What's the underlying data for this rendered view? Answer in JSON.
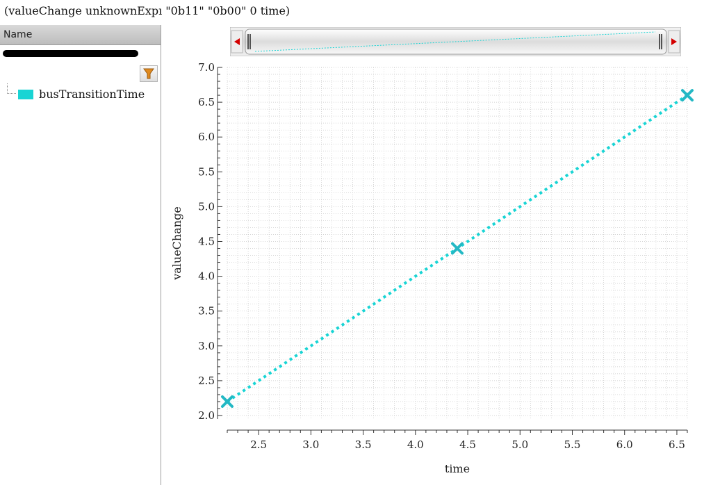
{
  "window": {
    "title": "(valueChange unknownExpı  \"0b11\" \"0b00\" 0 time)"
  },
  "left_panel": {
    "header": "Name",
    "filter_icon": "filter-funnel-icon",
    "signal": {
      "name": "busTransitionTime",
      "color": "#19d4d4"
    }
  },
  "colors": {
    "series": "#19d4d4",
    "marker": "#23b8c4",
    "grid": "#c8c8c8",
    "scroll_arrow": "#d40000",
    "filter_icon": "#e08a1e"
  },
  "chart_data": {
    "type": "line",
    "xlabel": "time",
    "ylabel": "valueChange",
    "xlim": [
      2.2,
      6.6
    ],
    "ylim": [
      1.95,
      7.0
    ],
    "xticks": [
      "2.5",
      "3.0",
      "3.5",
      "4.0",
      "4.5",
      "5.0",
      "5.5",
      "6.0",
      "6.5"
    ],
    "yticks": [
      "2.0",
      "2.5",
      "3.0",
      "3.5",
      "4.0",
      "4.5",
      "5.0",
      "5.5",
      "6.0",
      "6.5",
      "7.0"
    ],
    "grid": true,
    "line_style": "dotted",
    "marker": "x",
    "series": [
      {
        "name": "busTransitionTime",
        "x": [
          2.2,
          4.4,
          6.6
        ],
        "y": [
          2.2,
          4.4,
          6.6
        ]
      }
    ]
  }
}
